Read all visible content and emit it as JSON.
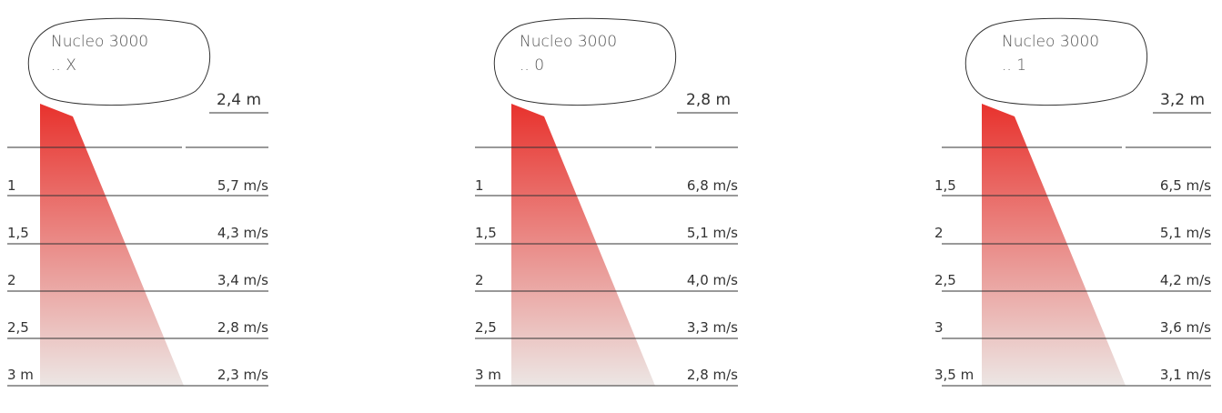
{
  "panels": [
    {
      "title": "Nucleo 3000",
      "subtitle": ".. X",
      "height": "2,4 m",
      "rows": [
        {
          "label": "",
          "value": ""
        },
        {
          "label": "1",
          "value": "5,7 m/s"
        },
        {
          "label": "1,5",
          "value": "4,3 m/s"
        },
        {
          "label": "2",
          "value": "3,4 m/s"
        },
        {
          "label": "2,5",
          "value": "2,8 m/s"
        },
        {
          "label": "3 m",
          "value": "2,3 m/s"
        }
      ]
    },
    {
      "title": "Nucleo 3000",
      "subtitle": ".. 0",
      "height": "2,8 m",
      "rows": [
        {
          "label": "",
          "value": ""
        },
        {
          "label": "1",
          "value": "6,8 m/s"
        },
        {
          "label": "1,5",
          "value": "5,1 m/s"
        },
        {
          "label": "2",
          "value": "4,0 m/s"
        },
        {
          "label": "2,5",
          "value": "3,3 m/s"
        },
        {
          "label": "3 m",
          "value": "2,8 m/s"
        }
      ]
    },
    {
      "title": "Nucleo 3000",
      "subtitle": ".. 1",
      "height": "3,2 m",
      "rows": [
        {
          "label": "",
          "value": ""
        },
        {
          "label": "1,5",
          "value": "6,5 m/s"
        },
        {
          "label": "2",
          "value": "5,1 m/s"
        },
        {
          "label": "2,5",
          "value": "4,2 m/s"
        },
        {
          "label": "3",
          "value": "3,6 m/s"
        },
        {
          "label": "3,5 m",
          "value": "3,1 m/s"
        }
      ]
    }
  ],
  "colors": {
    "beam_top": "#e8322d",
    "beam_bottom": "#ece6e4",
    "line": "#3a3a3a"
  }
}
